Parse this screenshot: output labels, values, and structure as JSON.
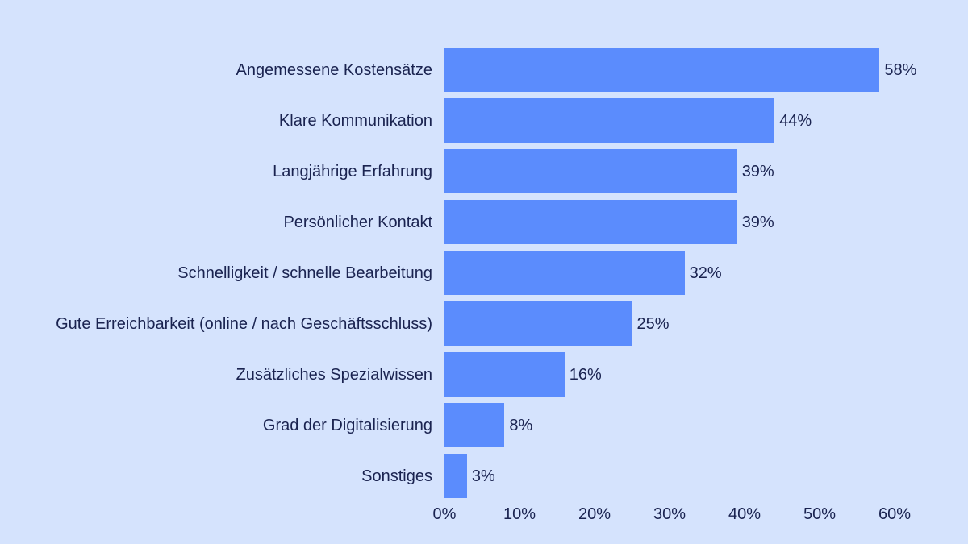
{
  "chart_data": {
    "type": "bar",
    "orientation": "horizontal",
    "title": "",
    "xlabel": "",
    "ylabel": "",
    "categories": [
      "Angemessene Kostensätze",
      "Klare Kommunikation",
      "Langjährige Erfahrung",
      "Persönlicher Kontakt",
      "Schnelligkeit / schnelle Bearbeitung",
      "Gute Erreichbarkeit (online / nach Geschäftsschluss)",
      "Zusätzliches Spezialwissen",
      "Grad der Digitalisierung",
      "Sonstiges"
    ],
    "values": [
      58,
      44,
      39,
      39,
      32,
      25,
      16,
      8,
      3
    ],
    "value_labels": [
      "58%",
      "44%",
      "39%",
      "39%",
      "32%",
      "25%",
      "16%",
      "8%",
      "3%"
    ],
    "xlim": [
      0,
      60
    ],
    "x_ticks": [
      0,
      10,
      20,
      30,
      40,
      50,
      60
    ],
    "x_tick_labels": [
      "0%",
      "10%",
      "20%",
      "30%",
      "40%",
      "50%",
      "60%"
    ],
    "grid": false,
    "legend": null,
    "colors": {
      "bar": "#5b8cfd",
      "background": "#d5e3fd",
      "text": "#1a2350"
    }
  }
}
